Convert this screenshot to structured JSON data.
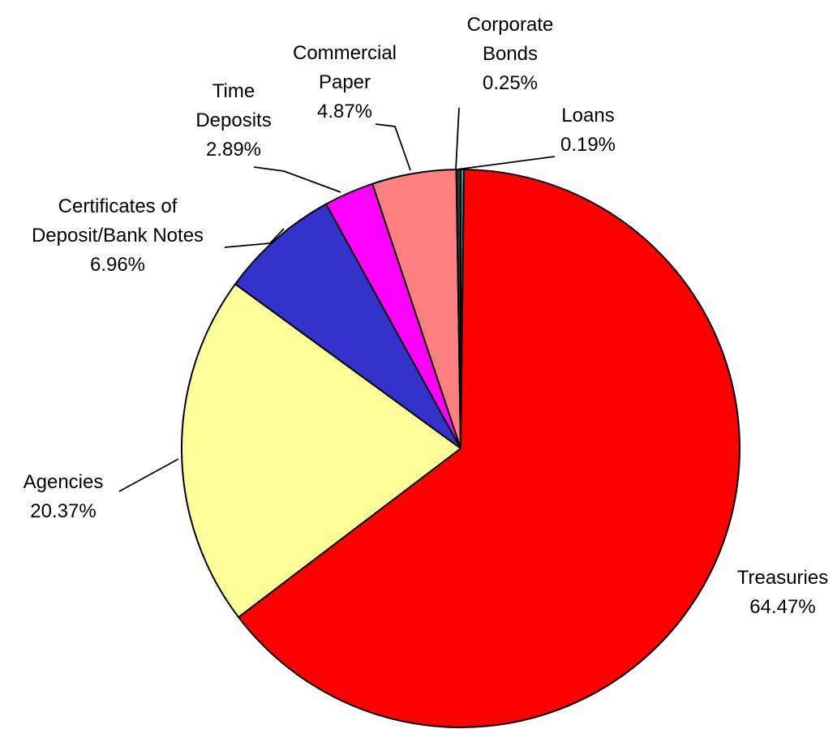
{
  "chart_data": {
    "type": "pie",
    "title": "",
    "slices": [
      {
        "name": "Loans",
        "lines": [
          "Loans"
        ],
        "value": 0.19,
        "value_label": "0.19%",
        "color": "#00B0C0"
      },
      {
        "name": "Treasuries",
        "lines": [
          "Treasuries"
        ],
        "value": 64.47,
        "value_label": "64.47%",
        "color": "#FF0000"
      },
      {
        "name": "Agencies",
        "lines": [
          "Agencies"
        ],
        "value": 20.37,
        "value_label": "20.37%",
        "color": "#FFFF99"
      },
      {
        "name": "Certificates of Deposit/Bank Notes",
        "lines": [
          "Certificates of",
          "Deposit/Bank Notes"
        ],
        "value": 6.96,
        "value_label": "6.96%",
        "color": "#3333CC"
      },
      {
        "name": "Time Deposits",
        "lines": [
          "Time",
          "Deposits"
        ],
        "value": 2.89,
        "value_label": "2.89%",
        "color": "#FF00FF"
      },
      {
        "name": "Commercial Paper",
        "lines": [
          "Commercial",
          "Paper"
        ],
        "value": 4.87,
        "value_label": "4.87%",
        "color": "#FF8080"
      },
      {
        "name": "Corporate Bonds",
        "lines": [
          "Corporate",
          "Bonds"
        ],
        "value": 0.25,
        "value_label": "0.25%",
        "color": "#333333"
      }
    ],
    "start_angle_deg": 0,
    "direction": "clockwise",
    "legend": "none",
    "labels": "outside-with-leader-lines"
  }
}
